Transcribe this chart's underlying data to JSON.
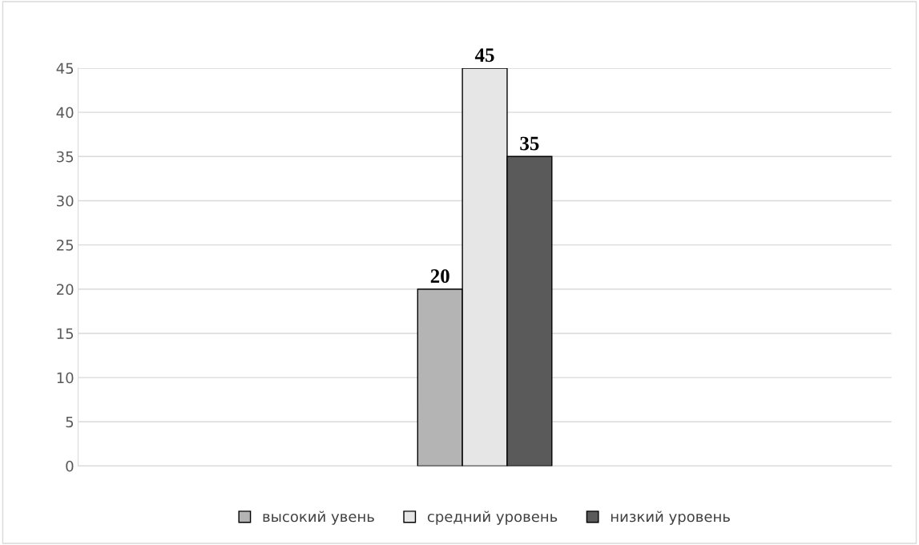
{
  "chart_data": {
    "type": "bar",
    "categories": [
      null
    ],
    "series": [
      {
        "name": "высокий увень",
        "color": "#b4b4b4",
        "values": [
          20
        ]
      },
      {
        "name": "средний уровень",
        "color": "#e6e6e6",
        "values": [
          45
        ]
      },
      {
        "name": "низкий уровень",
        "color": "#5a5a5a",
        "values": [
          35
        ]
      }
    ],
    "ylim": [
      0,
      45
    ],
    "yticks": [
      0,
      5,
      10,
      15,
      20,
      25,
      30,
      35,
      40,
      45
    ],
    "grid": "y",
    "legend": "bottom",
    "data_labels": true
  }
}
